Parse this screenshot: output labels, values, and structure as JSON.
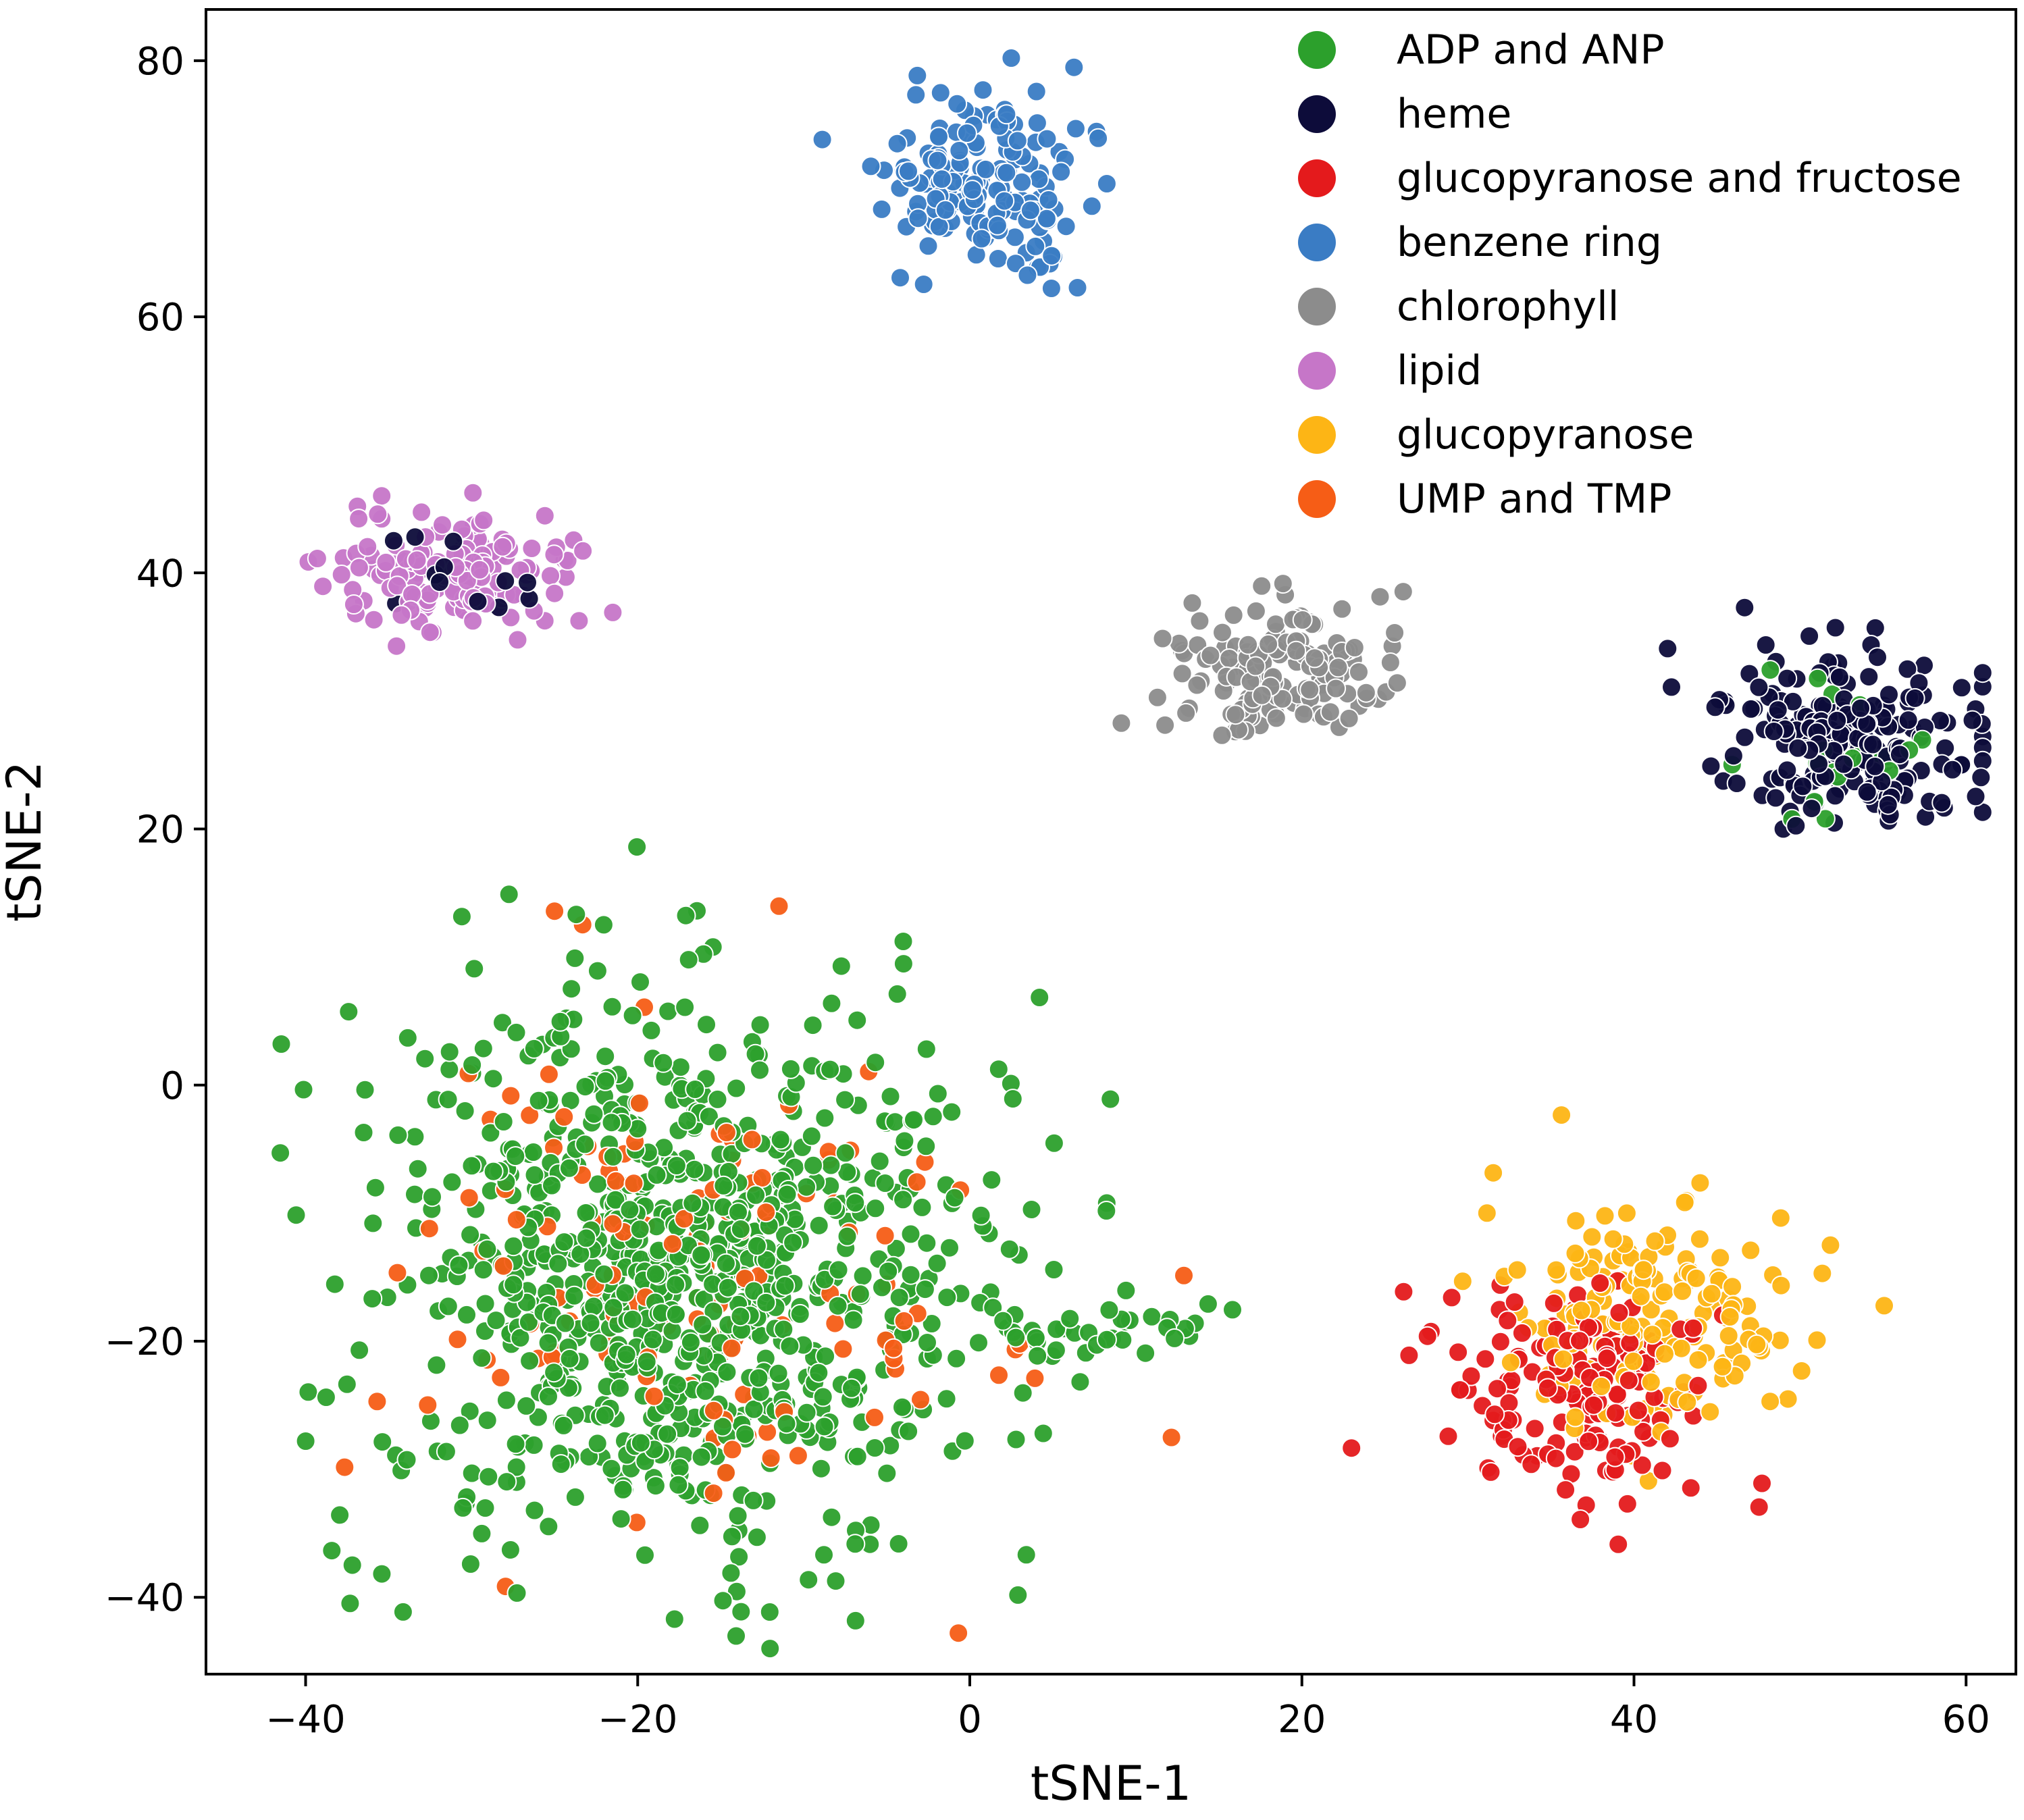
{
  "chart_data": {
    "type": "scatter",
    "title": "",
    "xlabel": "tSNE-1",
    "ylabel": "tSNE-2",
    "xlim": [
      -46,
      63
    ],
    "ylim": [
      -46,
      84
    ],
    "xticks": [
      -40,
      -20,
      0,
      20,
      40,
      60
    ],
    "yticks": [
      -40,
      -20,
      0,
      20,
      40,
      60,
      80
    ],
    "xtick_labels": [
      "−40",
      "−20",
      "0",
      "20",
      "40",
      "60"
    ],
    "ytick_labels": [
      "−40",
      "−20",
      "0",
      "20",
      "40",
      "60",
      "80"
    ],
    "legend_position": "top-right",
    "grid": false,
    "clusters": [
      {
        "series": "ADP and ANP",
        "center": [
          -18,
          -15
        ],
        "spread": [
          10,
          12
        ],
        "n": 900
      },
      {
        "series": "UMP and TMP",
        "center": [
          -16,
          -14
        ],
        "spread": [
          10,
          11
        ],
        "n": 140
      },
      {
        "series": "benzene ring",
        "center": [
          1,
          70
        ],
        "spread": [
          3.5,
          4
        ],
        "n": 170
      },
      {
        "series": "lipid",
        "center": [
          -31,
          40
        ],
        "spread": [
          4,
          2.8
        ],
        "n": 150
      },
      {
        "series": "chlorophyll",
        "center": [
          19,
          32
        ],
        "spread": [
          4,
          3.2
        ],
        "n": 150
      },
      {
        "series": "heme",
        "center": [
          53,
          27
        ],
        "spread": [
          4.5,
          3.5
        ],
        "n": 200
      },
      {
        "series": "glucopyranose",
        "center": [
          41,
          -18
        ],
        "spread": [
          5,
          5
        ],
        "n": 180
      },
      {
        "series": "glucopyranose and fructose",
        "center": [
          37,
          -24
        ],
        "spread": [
          4.5,
          5
        ],
        "n": 160
      },
      {
        "series": "ADP and ANP",
        "center": [
          8,
          -19
        ],
        "spread": [
          5,
          1.5
        ],
        "n": 40
      },
      {
        "series": "ADP and ANP",
        "center": [
          52,
          26
        ],
        "spread": [
          4,
          3
        ],
        "n": 18
      },
      {
        "series": "heme",
        "center": [
          -31,
          38
        ],
        "spread": [
          5,
          3
        ],
        "n": 12
      }
    ],
    "series": [
      {
        "name": "ADP and ANP",
        "color": "#2ca02c"
      },
      {
        "name": "heme",
        "color": "#0d0c3a"
      },
      {
        "name": "glucopyranose and fructose",
        "color": "#e41a1c"
      },
      {
        "name": "benzene ring",
        "color": "#3a7cc4"
      },
      {
        "name": "chlorophyll",
        "color": "#8c8c8c"
      },
      {
        "name": "lipid",
        "color": "#c676c8"
      },
      {
        "name": "glucopyranose",
        "color": "#fdb515"
      },
      {
        "name": "UMP and TMP",
        "color": "#f65d16"
      }
    ]
  }
}
